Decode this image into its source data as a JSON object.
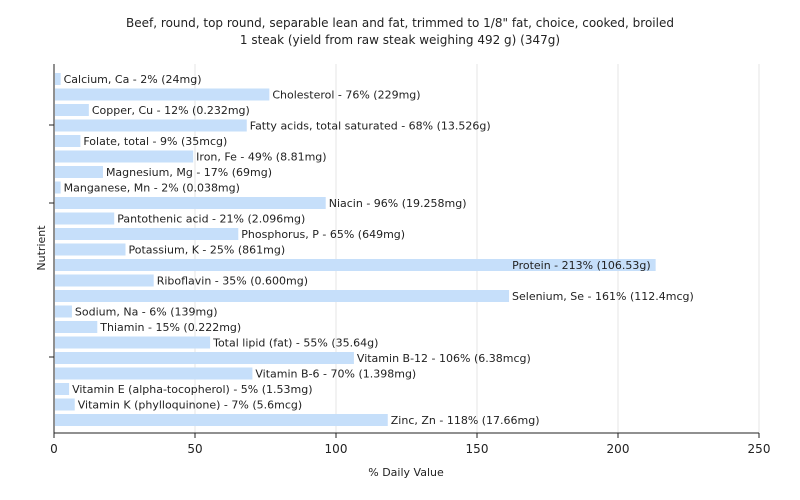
{
  "chart_data": {
    "type": "bar",
    "orientation": "horizontal",
    "title": "Beef, round, top round, separable lean and fat, trimmed to 1/8\" fat, choice, cooked, broiled",
    "subtitle": "1 steak (yield from raw steak weighing 492 g) (347g)",
    "xlabel": "% Daily Value",
    "ylabel": "Nutrient",
    "xlim": [
      0,
      250
    ],
    "xticks": [
      0,
      50,
      100,
      150,
      200,
      250
    ],
    "grid": true,
    "legend": "none",
    "bar_color": "#c6dffa",
    "categories": [
      "Calcium, Ca",
      "Cholesterol",
      "Copper, Cu",
      "Fatty acids, total saturated",
      "Folate, total",
      "Iron, Fe",
      "Magnesium, Mg",
      "Manganese, Mn",
      "Niacin",
      "Pantothenic acid",
      "Phosphorus, P",
      "Potassium, K",
      "Protein",
      "Riboflavin",
      "Selenium, Se",
      "Sodium, Na",
      "Thiamin",
      "Total lipid (fat)",
      "Vitamin B-12",
      "Vitamin B-6",
      "Vitamin E (alpha-tocopherol)",
      "Vitamin K (phylloquinone)",
      "Zinc, Zn"
    ],
    "values": [
      2,
      76,
      12,
      68,
      9,
      49,
      17,
      2,
      96,
      21,
      65,
      25,
      213,
      35,
      161,
      6,
      15,
      55,
      106,
      70,
      5,
      7,
      118
    ],
    "labels": [
      "Calcium, Ca - 2% (24mg)",
      "Cholesterol - 76% (229mg)",
      "Copper, Cu - 12% (0.232mg)",
      "Fatty acids, total saturated - 68% (13.526g)",
      "Folate, total - 9% (35mcg)",
      "Iron, Fe - 49% (8.81mg)",
      "Magnesium, Mg - 17% (69mg)",
      "Manganese, Mn - 2% (0.038mg)",
      "Niacin - 96% (19.258mg)",
      "Pantothenic acid - 21% (2.096mg)",
      "Phosphorus, P - 65% (649mg)",
      "Potassium, K - 25% (861mg)",
      "Protein - 213% (106.53g)",
      "Riboflavin - 35% (0.600mg)",
      "Selenium, Se - 161% (112.4mcg)",
      "Sodium, Na - 6% (139mg)",
      "Thiamin - 15% (0.222mg)",
      "Total lipid (fat) - 55% (35.64g)",
      "Vitamin B-12 - 106% (6.38mcg)",
      "Vitamin B-6 - 70% (1.398mg)",
      "Vitamin E (alpha-tocopherol) - 5% (1.53mg)",
      "Vitamin K (phylloquinone) - 7% (5.6mcg)",
      "Zinc, Zn - 118% (17.66mg)"
    ]
  }
}
